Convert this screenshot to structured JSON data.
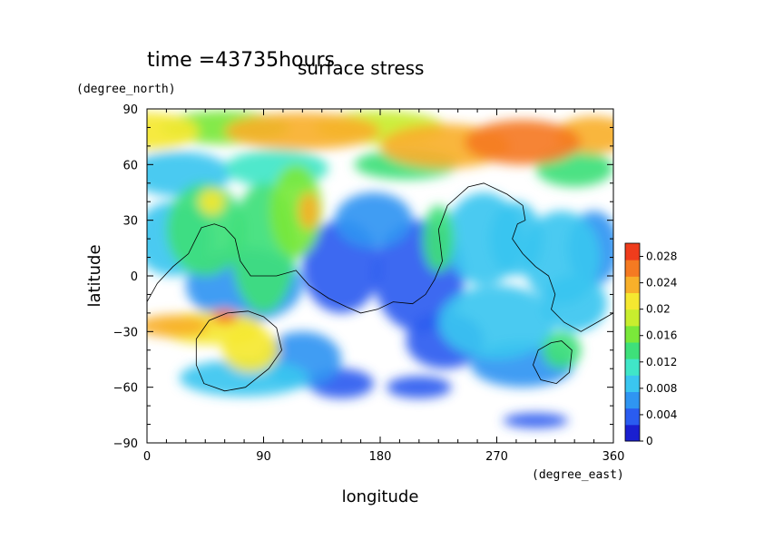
{
  "chart_data": {
    "type": "heatmap",
    "time_label": "time =43735hours",
    "title": "surface stress",
    "xlabel": "longitude",
    "ylabel": "latitude",
    "x_unit": "(degree_east)",
    "y_unit": "(degree_north)",
    "xlim": [
      0,
      360
    ],
    "ylim": [
      -90,
      90
    ],
    "x_ticks": [
      "0",
      "90",
      "180",
      "270",
      "360"
    ],
    "y_ticks": [
      "90",
      "60",
      "30",
      "0",
      "−30",
      "−60",
      "−90"
    ],
    "colorbar": {
      "min": 0,
      "max": 0.03,
      "tick_labels": [
        "0",
        "0.004",
        "0.008",
        "0.012",
        "0.016",
        "0.02",
        "0.024",
        "0.028"
      ],
      "colors": [
        "#ffffff",
        "#1a1fd0",
        "#2a5cf0",
        "#2f95f2",
        "#3ac6f0",
        "#40e6c8",
        "#3ee07a",
        "#7ae83a",
        "#c8ee2e",
        "#f5e830",
        "#f8b02a",
        "#f57a22",
        "#ef3c1c"
      ]
    },
    "field_blobs": [
      {
        "lon": 0,
        "lat": 78,
        "value": 0.022,
        "rlon": 40,
        "rlat": 10
      },
      {
        "lon": 60,
        "lat": 80,
        "value": 0.018,
        "rlon": 50,
        "rlat": 9
      },
      {
        "lon": 120,
        "lat": 78,
        "value": 0.026,
        "rlon": 60,
        "rlat": 10
      },
      {
        "lon": 180,
        "lat": 80,
        "value": 0.02,
        "rlon": 50,
        "rlat": 9
      },
      {
        "lon": 230,
        "lat": 70,
        "value": 0.026,
        "rlon": 50,
        "rlat": 12
      },
      {
        "lon": 290,
        "lat": 72,
        "value": 0.028,
        "rlon": 45,
        "rlat": 12
      },
      {
        "lon": 345,
        "lat": 76,
        "value": 0.024,
        "rlon": 30,
        "rlat": 10
      },
      {
        "lon": 25,
        "lat": 55,
        "value": 0.01,
        "rlon": 40,
        "rlat": 12
      },
      {
        "lon": 100,
        "lat": 58,
        "value": 0.012,
        "rlon": 40,
        "rlat": 10
      },
      {
        "lon": 200,
        "lat": 60,
        "value": 0.014,
        "rlon": 40,
        "rlat": 8
      },
      {
        "lon": 330,
        "lat": 58,
        "value": 0.016,
        "rlon": 30,
        "rlat": 10
      },
      {
        "lon": 20,
        "lat": 20,
        "value": 0.01,
        "rlon": 30,
        "rlat": 20
      },
      {
        "lon": 50,
        "lat": 40,
        "value": 0.022,
        "rlon": 10,
        "rlat": 7
      },
      {
        "lon": 45,
        "lat": 25,
        "value": 0.016,
        "rlon": 30,
        "rlat": 25
      },
      {
        "lon": 90,
        "lat": 15,
        "value": 0.014,
        "rlon": 25,
        "rlat": 35
      },
      {
        "lon": 115,
        "lat": 35,
        "value": 0.018,
        "rlon": 20,
        "rlat": 25
      },
      {
        "lon": 125,
        "lat": 35,
        "value": 0.024,
        "rlon": 8,
        "rlat": 10
      },
      {
        "lon": 75,
        "lat": -5,
        "value": 0.008,
        "rlon": 45,
        "rlat": 20
      },
      {
        "lon": 150,
        "lat": 5,
        "value": 0.006,
        "rlon": 30,
        "rlat": 25
      },
      {
        "lon": 175,
        "lat": 30,
        "value": 0.007,
        "rlon": 30,
        "rlat": 15
      },
      {
        "lon": 210,
        "lat": 0,
        "value": 0.006,
        "rlon": 35,
        "rlat": 30
      },
      {
        "lon": 225,
        "lat": 20,
        "value": 0.016,
        "rlon": 12,
        "rlat": 18
      },
      {
        "lon": 260,
        "lat": 20,
        "value": 0.01,
        "rlon": 30,
        "rlat": 25
      },
      {
        "lon": 285,
        "lat": 20,
        "value": 0.009,
        "rlon": 20,
        "rlat": 20
      },
      {
        "lon": 320,
        "lat": 10,
        "value": 0.009,
        "rlon": 30,
        "rlat": 25
      },
      {
        "lon": 345,
        "lat": 15,
        "value": 0.008,
        "rlon": 20,
        "rlat": 20
      },
      {
        "lon": 270,
        "lat": -25,
        "value": 0.009,
        "rlon": 45,
        "rlat": 20
      },
      {
        "lon": 330,
        "lat": -15,
        "value": 0.01,
        "rlon": 25,
        "rlat": 15
      },
      {
        "lon": 230,
        "lat": -35,
        "value": 0.006,
        "rlon": 30,
        "rlat": 15
      },
      {
        "lon": 20,
        "lat": -27,
        "value": 0.026,
        "rlon": 28,
        "rlat": 6
      },
      {
        "lon": 50,
        "lat": -28,
        "value": 0.022,
        "rlon": 40,
        "rlat": 9
      },
      {
        "lon": 60,
        "lat": -22,
        "value": 0.028,
        "rlon": 10,
        "rlat": 4
      },
      {
        "lon": 80,
        "lat": -40,
        "value": 0.022,
        "rlon": 22,
        "rlat": 12
      },
      {
        "lon": 75,
        "lat": -55,
        "value": 0.01,
        "rlon": 50,
        "rlat": 10
      },
      {
        "lon": 120,
        "lat": -45,
        "value": 0.008,
        "rlon": 30,
        "rlat": 15
      },
      {
        "lon": 150,
        "lat": -58,
        "value": 0.006,
        "rlon": 25,
        "rlat": 8
      },
      {
        "lon": 210,
        "lat": -60,
        "value": 0.005,
        "rlon": 25,
        "rlat": 6
      },
      {
        "lon": 290,
        "lat": -48,
        "value": 0.008,
        "rlon": 40,
        "rlat": 12
      },
      {
        "lon": 320,
        "lat": -40,
        "value": 0.016,
        "rlon": 15,
        "rlat": 10
      },
      {
        "lon": 300,
        "lat": -78,
        "value": 0.006,
        "rlon": 25,
        "rlat": 4
      }
    ],
    "coastlines": [
      [
        [
          0,
          -14
        ],
        [
          8,
          -4
        ],
        [
          20,
          5
        ],
        [
          32,
          12
        ],
        [
          42,
          26
        ],
        [
          52,
          28
        ],
        [
          60,
          26
        ],
        [
          68,
          20
        ],
        [
          72,
          8
        ],
        [
          80,
          0
        ],
        [
          100,
          0
        ],
        [
          115,
          3
        ],
        [
          125,
          -5
        ],
        [
          140,
          -12
        ],
        [
          155,
          -17
        ],
        [
          165,
          -20
        ],
        [
          178,
          -18
        ],
        [
          190,
          -14
        ],
        [
          205,
          -15
        ],
        [
          215,
          -10
        ],
        [
          222,
          -2
        ],
        [
          228,
          8
        ],
        [
          225,
          25
        ],
        [
          232,
          38
        ],
        [
          248,
          48
        ],
        [
          260,
          50
        ],
        [
          278,
          44
        ],
        [
          290,
          38
        ],
        [
          292,
          30
        ],
        [
          286,
          28
        ],
        [
          282,
          20
        ],
        [
          290,
          12
        ],
        [
          300,
          5
        ],
        [
          310,
          0
        ],
        [
          315,
          -10
        ],
        [
          312,
          -18
        ],
        [
          322,
          -25
        ],
        [
          335,
          -30
        ],
        [
          350,
          -24
        ],
        [
          360,
          -20
        ]
      ],
      [
        [
          62,
          -20
        ],
        [
          48,
          -24
        ],
        [
          38,
          -34
        ],
        [
          38,
          -48
        ],
        [
          44,
          -58
        ],
        [
          60,
          -62
        ],
        [
          76,
          -60
        ],
        [
          94,
          -50
        ],
        [
          104,
          -40
        ],
        [
          100,
          -28
        ],
        [
          90,
          -22
        ],
        [
          78,
          -19
        ],
        [
          62,
          -20
        ]
      ],
      [
        [
          312,
          -36
        ],
        [
          302,
          -40
        ],
        [
          298,
          -48
        ],
        [
          304,
          -56
        ],
        [
          316,
          -58
        ],
        [
          326,
          -52
        ],
        [
          328,
          -40
        ],
        [
          320,
          -35
        ],
        [
          312,
          -36
        ]
      ]
    ]
  }
}
